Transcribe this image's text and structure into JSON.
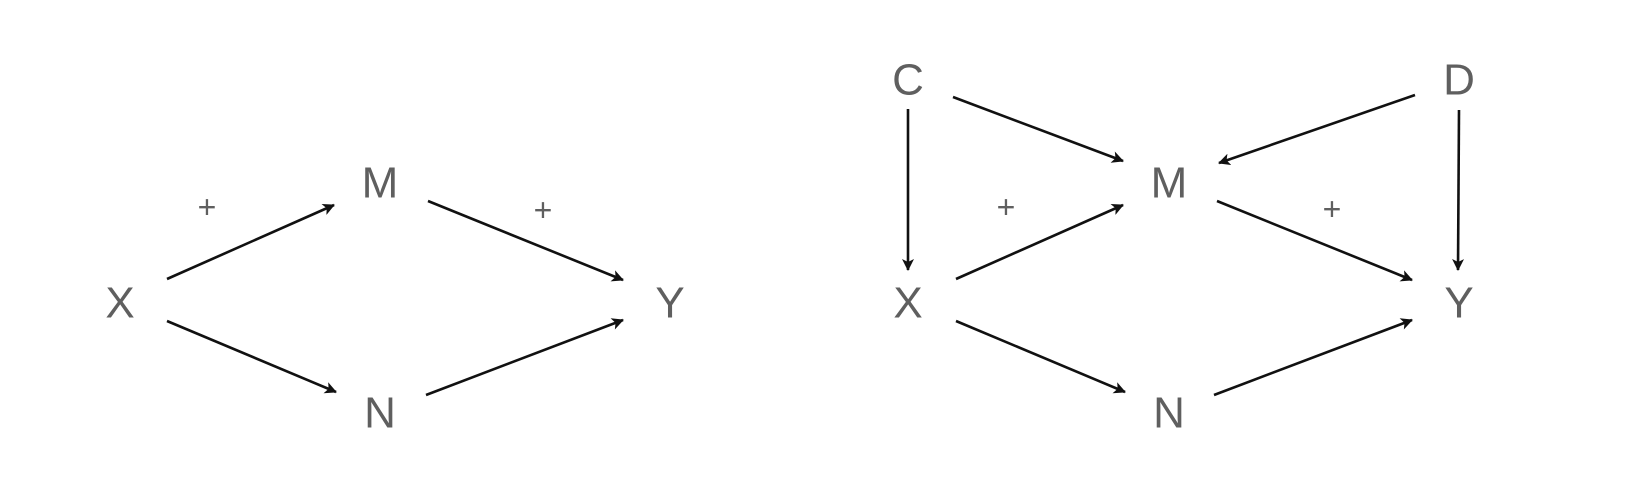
{
  "diagrams": [
    {
      "nodes": [
        {
          "id": "X",
          "label": "X"
        },
        {
          "id": "M",
          "label": "M"
        },
        {
          "id": "N",
          "label": "N"
        },
        {
          "id": "Y",
          "label": "Y"
        }
      ],
      "edges": [
        {
          "from": "X",
          "to": "M",
          "sign": "+"
        },
        {
          "from": "M",
          "to": "Y",
          "sign": "+"
        },
        {
          "from": "X",
          "to": "N",
          "sign": ""
        },
        {
          "from": "N",
          "to": "Y",
          "sign": ""
        }
      ]
    },
    {
      "nodes": [
        {
          "id": "C",
          "label": "C"
        },
        {
          "id": "D",
          "label": "D"
        },
        {
          "id": "X",
          "label": "X"
        },
        {
          "id": "M",
          "label": "M"
        },
        {
          "id": "N",
          "label": "N"
        },
        {
          "id": "Y",
          "label": "Y"
        }
      ],
      "edges": [
        {
          "from": "C",
          "to": "X",
          "sign": ""
        },
        {
          "from": "C",
          "to": "M",
          "sign": ""
        },
        {
          "from": "D",
          "to": "M",
          "sign": ""
        },
        {
          "from": "D",
          "to": "Y",
          "sign": ""
        },
        {
          "from": "X",
          "to": "M",
          "sign": "+"
        },
        {
          "from": "M",
          "to": "Y",
          "sign": "+"
        },
        {
          "from": "X",
          "to": "N",
          "sign": ""
        },
        {
          "from": "N",
          "to": "Y",
          "sign": ""
        }
      ]
    }
  ]
}
